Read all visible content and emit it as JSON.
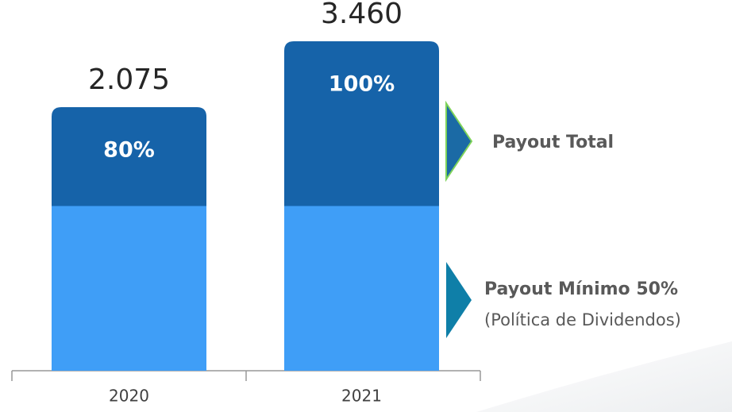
{
  "chart_data": {
    "type": "bar",
    "categories": [
      "2020",
      "2021"
    ],
    "series": [
      {
        "name": "Payout Total",
        "color": "#1663a9",
        "values": [
          80,
          100
        ],
        "value_labels": [
          "80%",
          "100%"
        ]
      },
      {
        "name": "Payout Mínimo 50%",
        "color": "#3f9ef7",
        "values": [
          50,
          50
        ]
      }
    ],
    "amounts": {
      "values": [
        2075,
        3460
      ],
      "value_labels": [
        "2.075",
        "3.460"
      ]
    },
    "legend_note": "(Política de Dividendos)",
    "ylim": [
      0,
      100
    ],
    "grid": false
  }
}
